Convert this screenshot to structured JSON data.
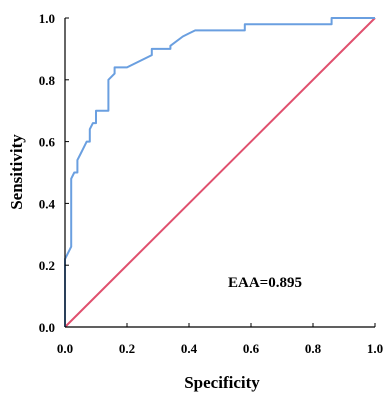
{
  "chart_data": {
    "type": "line",
    "xlabel": "Specificity",
    "ylabel": "Sensitivity",
    "xlim": [
      0,
      1
    ],
    "ylim": [
      0,
      1
    ],
    "x_ticks": [
      "0.0",
      "0.2",
      "0.4",
      "0.6",
      "0.8",
      "1.0"
    ],
    "y_ticks": [
      "0.0",
      "0.2",
      "0.4",
      "0.6",
      "0.8",
      "1.0"
    ],
    "grid": false,
    "annotation": "EAA=0.895",
    "series": [
      {
        "color": "#6a9fe0",
        "x": [
          0,
          0,
          0.02,
          0.02,
          0.03,
          0.04,
          0.04,
          0.05,
          0.06,
          0.07,
          0.08,
          0.08,
          0.09,
          0.1,
          0.1,
          0.14,
          0.14,
          0.16,
          0.16,
          0.18,
          0.2,
          0.28,
          0.28,
          0.34,
          0.34,
          0.38,
          0.4,
          0.42,
          0.42,
          0.58,
          0.58,
          0.86,
          0.86,
          1.0
        ],
        "y": [
          0,
          0.22,
          0.26,
          0.48,
          0.5,
          0.5,
          0.54,
          0.56,
          0.58,
          0.6,
          0.6,
          0.64,
          0.66,
          0.66,
          0.7,
          0.7,
          0.8,
          0.82,
          0.84,
          0.84,
          0.84,
          0.88,
          0.9,
          0.9,
          0.91,
          0.94,
          0.95,
          0.96,
          0.96,
          0.96,
          0.98,
          0.98,
          1.0,
          1.0
        ]
      },
      {
        "color": "#e0506e",
        "x": [
          0,
          1
        ],
        "y": [
          0,
          1
        ]
      }
    ]
  }
}
